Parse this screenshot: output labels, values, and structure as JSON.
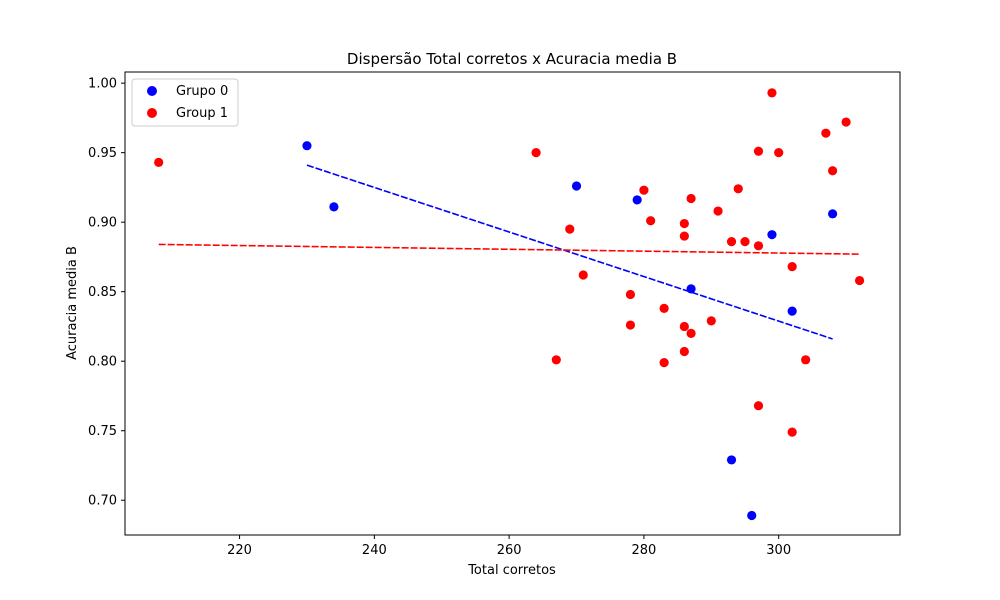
{
  "chart_data": {
    "type": "scatter",
    "title": "Dispersão Total corretos x Acuracia media B",
    "xlabel": "Total corretos",
    "ylabel": "Acuracia media B",
    "xlim": [
      203,
      318
    ],
    "ylim": [
      0.675,
      1.008
    ],
    "xticks": [
      220,
      240,
      260,
      280,
      300
    ],
    "yticks": [
      0.7,
      0.75,
      0.8,
      0.85,
      0.9,
      0.95,
      1.0
    ],
    "ytick_labels": [
      "0.70",
      "0.75",
      "0.80",
      "0.85",
      "0.90",
      "0.95",
      "1.00"
    ],
    "grid": false,
    "legend_position": "top-left",
    "series": [
      {
        "name": "Grupo 0",
        "color": "#0000ff",
        "points": [
          [
            230,
            0.955
          ],
          [
            234,
            0.911
          ],
          [
            270,
            0.926
          ],
          [
            279,
            0.916
          ],
          [
            287,
            0.852
          ],
          [
            293,
            0.729
          ],
          [
            296,
            0.689
          ],
          [
            299,
            0.891
          ],
          [
            302,
            0.836
          ],
          [
            308,
            0.906
          ]
        ],
        "trend": {
          "x1": 230,
          "y1": 0.941,
          "x2": 308,
          "y2": 0.816
        }
      },
      {
        "name": "Group 1",
        "color": "#ff0000",
        "points": [
          [
            208,
            0.943
          ],
          [
            264,
            0.95
          ],
          [
            267,
            0.801
          ],
          [
            269,
            0.895
          ],
          [
            271,
            0.862
          ],
          [
            278,
            0.848
          ],
          [
            278,
            0.826
          ],
          [
            280,
            0.923
          ],
          [
            281,
            0.901
          ],
          [
            283,
            0.838
          ],
          [
            283,
            0.799
          ],
          [
            286,
            0.899
          ],
          [
            286,
            0.89
          ],
          [
            286,
            0.825
          ],
          [
            286,
            0.807
          ],
          [
            287,
            0.917
          ],
          [
            287,
            0.82
          ],
          [
            290,
            0.829
          ],
          [
            291,
            0.908
          ],
          [
            293,
            0.886
          ],
          [
            294,
            0.924
          ],
          [
            295,
            0.886
          ],
          [
            297,
            0.951
          ],
          [
            297,
            0.883
          ],
          [
            297,
            0.768
          ],
          [
            299,
            0.993
          ],
          [
            300,
            0.95
          ],
          [
            302,
            0.868
          ],
          [
            302,
            0.749
          ],
          [
            304,
            0.801
          ],
          [
            307,
            0.964
          ],
          [
            308,
            0.937
          ],
          [
            310,
            0.972
          ],
          [
            312,
            0.858
          ]
        ],
        "trend": {
          "x1": 208,
          "y1": 0.884,
          "x2": 312,
          "y2": 0.877
        }
      }
    ]
  }
}
